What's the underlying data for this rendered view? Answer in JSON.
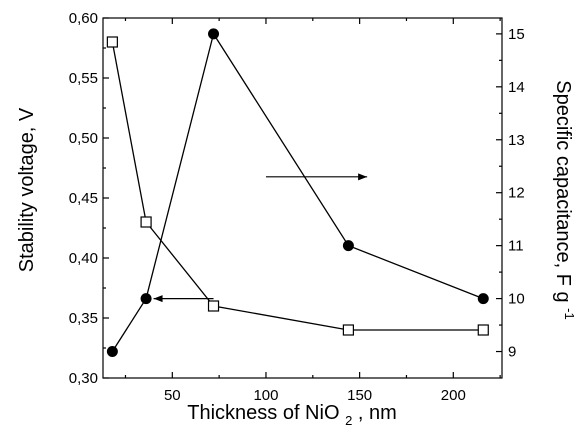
{
  "chart_data": {
    "type": "line",
    "x": [
      18,
      36,
      72,
      144,
      216
    ],
    "xlabel": "Thickness of NiO",
    "xlabel_subscript": "2",
    "xlabel_suffix": ", nm",
    "xlim": [
      13,
      226
    ],
    "xticks": [
      50,
      100,
      150,
      200
    ],
    "xticklabels": [
      "50",
      "100",
      "150",
      "200"
    ],
    "ylabel": "Stability voltage, V",
    "ylim": [
      0.3,
      0.6
    ],
    "yticks": [
      0.3,
      0.35,
      0.4,
      0.45,
      0.5,
      0.55,
      0.6
    ],
    "yticklabels": [
      "0,30",
      "0,35",
      "0,40",
      "0,45",
      "0,50",
      "0,55",
      "0,60"
    ],
    "y2label": "Specific capacitance, F g",
    "y2label_superscript": "-1",
    "y2lim": [
      8.5,
      15.3
    ],
    "y2ticks": [
      9,
      10,
      11,
      12,
      13,
      14,
      15
    ],
    "y2ticklabels": [
      "9",
      "10",
      "11",
      "12",
      "13",
      "14",
      "15"
    ],
    "grid": false,
    "series": [
      {
        "axis": "left",
        "marker": "open-square",
        "values": [
          0.58,
          0.43,
          0.36,
          0.34,
          0.34
        ]
      },
      {
        "axis": "right",
        "marker": "filled-circle",
        "values": [
          9.0,
          10.0,
          15.0,
          11.0,
          10.0
        ]
      }
    ],
    "annotations": [
      {
        "type": "arrow",
        "points_to": "left-axis",
        "anchor": {
          "x": 72,
          "y": 10.0,
          "axis": "right"
        },
        "length_x": 32
      },
      {
        "type": "arrow",
        "points_to": "right-axis",
        "anchor": {
          "x": 100,
          "y": 12.3,
          "axis": "right"
        },
        "length_x": 54
      }
    ]
  }
}
